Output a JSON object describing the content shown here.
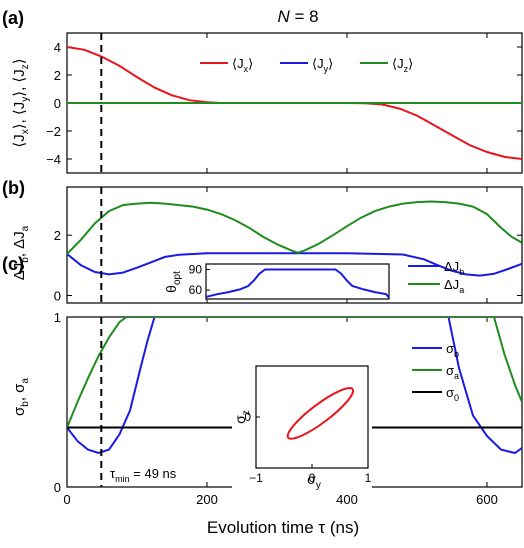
{
  "figure": {
    "title": "N = 8",
    "xlabel": "Evolution time τ (ns)",
    "vline_label": "τ",
    "vline_label_sub": "min",
    "vline_label_rest": " = 49 ns"
  },
  "chart_data": [
    {
      "type": "line",
      "panel_label": "(a)",
      "ylabel": "⟨Jx⟩, ⟨Jy⟩, ⟨Jz⟩",
      "xlim": [
        0,
        650
      ],
      "ylim": [
        -5,
        5
      ],
      "yticks": [
        -4,
        -2,
        0,
        2,
        4
      ],
      "xticks": [
        0,
        200,
        400,
        600
      ],
      "vline_x": 49,
      "series": [
        {
          "name": "⟨Jx⟩",
          "sym": "J",
          "sub": "x",
          "color": "#e8141e",
          "x": [
            0,
            25,
            50,
            75,
            100,
            125,
            150,
            175,
            200,
            220,
            250,
            300,
            350,
            400,
            425,
            450,
            475,
            500,
            525,
            550,
            575,
            600,
            625,
            650
          ],
          "y": [
            4.0,
            3.8,
            3.3,
            2.65,
            1.85,
            1.1,
            0.55,
            0.2,
            0.05,
            0.0,
            0.0,
            0.0,
            0.0,
            0.0,
            -0.02,
            -0.1,
            -0.4,
            -0.9,
            -1.6,
            -2.3,
            -3.0,
            -3.5,
            -3.85,
            -4.0
          ]
        },
        {
          "name": "⟨Jy⟩",
          "sym": "J",
          "sub": "y",
          "color": "#1a1ae6",
          "x": [
            0,
            650
          ],
          "y": [
            0,
            0
          ]
        },
        {
          "name": "⟨Jz⟩",
          "sym": "J",
          "sub": "z",
          "color": "#1f8c1f",
          "x": [
            0,
            650
          ],
          "y": [
            0,
            0
          ]
        }
      ]
    },
    {
      "type": "line",
      "panel_label": "(b)",
      "ylabel": "ΔJb, ΔJa",
      "xlim": [
        0,
        650
      ],
      "ylim": [
        -0.25,
        3.6
      ],
      "yticks": [
        0,
        2
      ],
      "xticks": [
        0,
        200,
        400,
        600
      ],
      "vline_x": 49,
      "series": [
        {
          "name": "ΔJb",
          "sym": "ΔJ",
          "sub": "b",
          "color": "#1a1ae6",
          "x": [
            0,
            20,
            40,
            60,
            80,
            100,
            120,
            140,
            160,
            200,
            300,
            400,
            480,
            510,
            530,
            550,
            570,
            590,
            610,
            630,
            650
          ],
          "y": [
            1.38,
            1.0,
            0.78,
            0.7,
            0.76,
            0.92,
            1.1,
            1.28,
            1.35,
            1.4,
            1.4,
            1.4,
            1.36,
            1.2,
            1.0,
            0.82,
            0.7,
            0.66,
            0.72,
            0.88,
            1.05
          ]
        },
        {
          "name": "ΔJa",
          "sym": "ΔJ",
          "sub": "a",
          "color": "#1f8c1f",
          "x": [
            0,
            20,
            40,
            60,
            80,
            100,
            120,
            140,
            160,
            180,
            200,
            220,
            240,
            260,
            280,
            300,
            320,
            330,
            340,
            360,
            380,
            400,
            420,
            440,
            460,
            480,
            500,
            520,
            540,
            560,
            580,
            600,
            620,
            635,
            650
          ],
          "y": [
            1.38,
            1.85,
            2.4,
            2.8,
            3.0,
            3.05,
            3.08,
            3.05,
            3.0,
            2.95,
            2.85,
            2.7,
            2.5,
            2.25,
            1.95,
            1.7,
            1.5,
            1.42,
            1.5,
            1.72,
            2.0,
            2.3,
            2.58,
            2.8,
            2.95,
            3.05,
            3.1,
            3.12,
            3.1,
            3.05,
            2.95,
            2.7,
            2.25,
            1.95,
            1.75
          ]
        }
      ],
      "inset": {
        "ylabel": "θopt",
        "ylabel_sym": "θ",
        "ylabel_sub": "opt",
        "ylim": [
          47,
          98
        ],
        "yticks": [
          60,
          90
        ],
        "xlim": [
          0,
          650
        ],
        "series": [
          {
            "color": "#1a1ae6",
            "x": [
              0,
              40,
              80,
              120,
              150,
              170,
              190,
              210,
              460,
              480,
              500,
              520,
              560,
              600,
              640,
              650
            ],
            "y": [
              50,
              54,
              57,
              61,
              66,
              74,
              84,
              90,
              90,
              84,
              74,
              66,
              61,
              57,
              54,
              49
            ]
          }
        ]
      }
    },
    {
      "type": "line",
      "panel_label": "(c)",
      "ylabel": "σb, σa",
      "xlim": [
        0,
        650
      ],
      "ylim": [
        0,
        1
      ],
      "yticks": [
        0,
        1
      ],
      "xticks": [
        0,
        200,
        400,
        600
      ],
      "vline_x": 49,
      "series": [
        {
          "name": "σb",
          "sym": "σ",
          "sub": "b",
          "color": "#1a1ae6",
          "x": [
            0,
            15,
            30,
            45,
            60,
            75,
            90,
            105,
            115,
            125,
            545,
            560,
            580,
            600,
            620,
            640,
            650
          ],
          "y": [
            0.35,
            0.27,
            0.22,
            0.2,
            0.22,
            0.31,
            0.45,
            0.7,
            0.86,
            1.0,
            1.0,
            0.7,
            0.42,
            0.3,
            0.22,
            0.2,
            0.23
          ]
        },
        {
          "name": "σa",
          "sym": "σ",
          "sub": "a",
          "color": "#1f8c1f",
          "x": [
            0,
            15,
            30,
            45,
            60,
            75,
            85,
            610,
            625,
            640,
            650
          ],
          "y": [
            0.35,
            0.5,
            0.64,
            0.77,
            0.88,
            0.97,
            1.0,
            1.0,
            0.78,
            0.6,
            0.5
          ]
        },
        {
          "name": "σ0",
          "sym": "σ",
          "sub": "0",
          "color": "#000000",
          "x": [
            0,
            650
          ],
          "y": [
            0.35,
            0.35
          ]
        }
      ],
      "inset": {
        "xlabel": "σy",
        "xlabel_sym": "σ",
        "xlabel_sub": "y",
        "ylabel": "σz",
        "ylabel_sym": "σ",
        "ylabel_sub": "z",
        "xlim": [
          -1,
          1
        ],
        "ylim": [
          -1,
          1
        ],
        "xticks": [
          -1,
          0,
          1
        ],
        "yticks": [
          0
        ],
        "ellipse": {
          "cx": 0.15,
          "cy": 0.07,
          "rx": 0.72,
          "ry": 0.18,
          "angle_deg": 37,
          "color": "#e8141e"
        }
      }
    }
  ]
}
